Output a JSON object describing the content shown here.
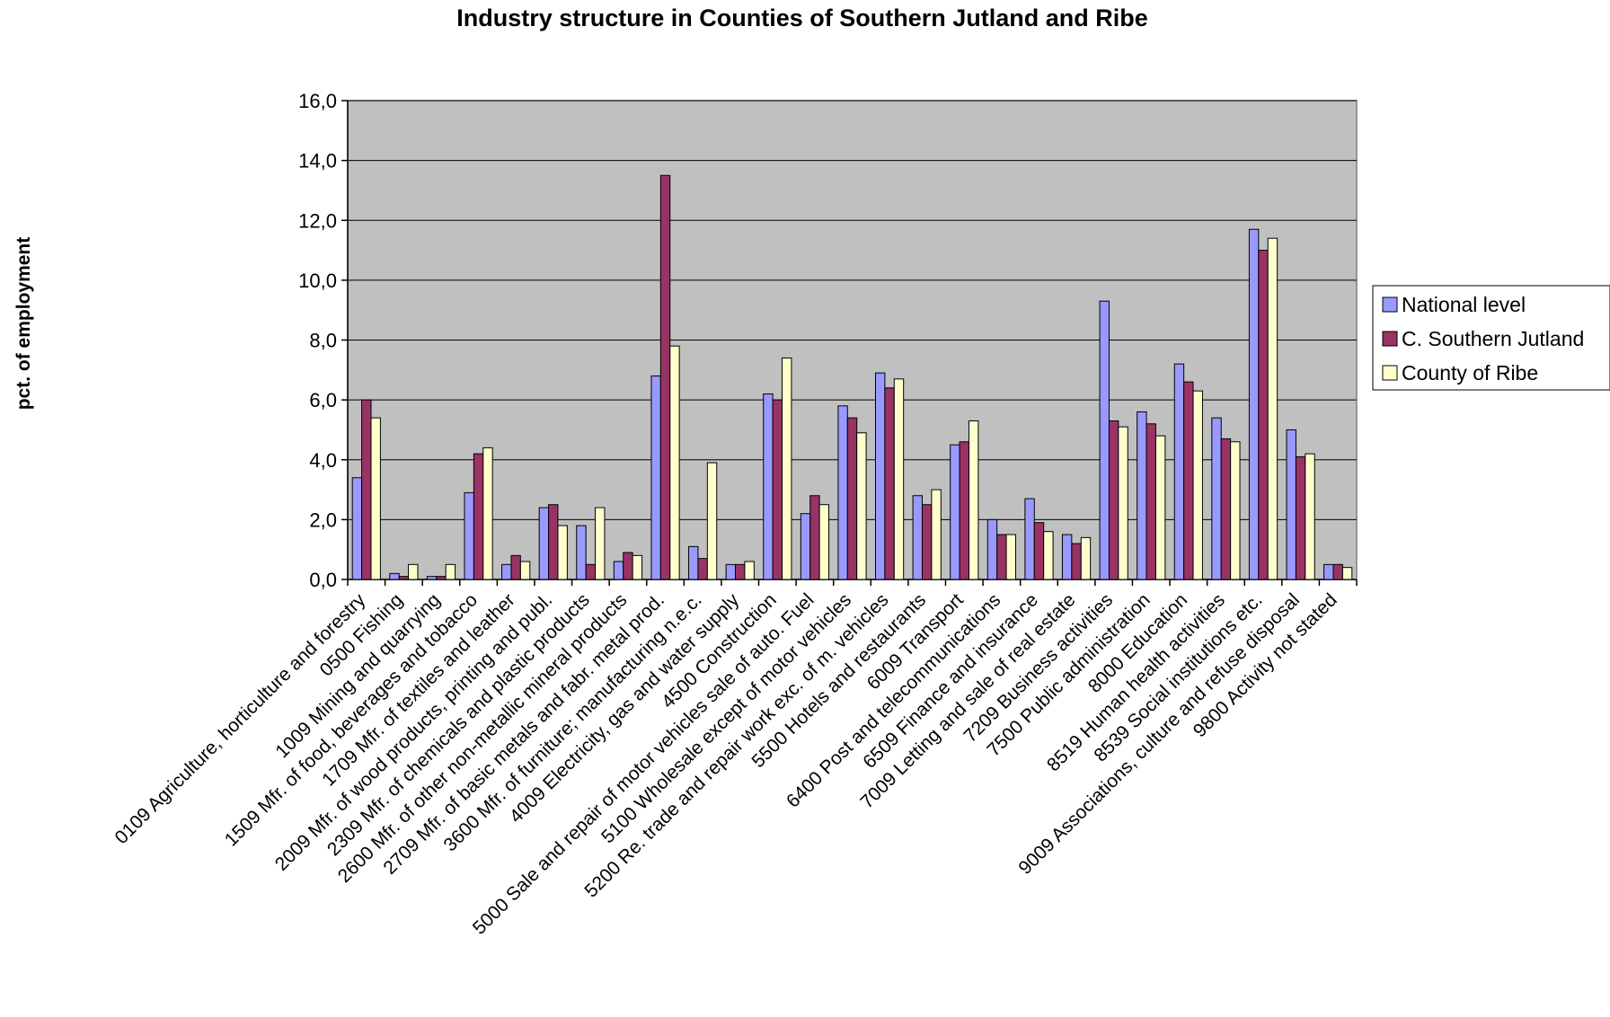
{
  "chart_data": {
    "type": "bar",
    "title": "Industry structure in Counties of Southern Jutland and Ribe",
    "xlabel": "",
    "ylabel": "pct. of employment",
    "ylim": [
      0,
      16
    ],
    "yticks": [
      "0,0",
      "2,0",
      "4,0",
      "6,0",
      "8,0",
      "10,0",
      "12,0",
      "14,0",
      "16,0"
    ],
    "grid": true,
    "legend_position": "right",
    "categories": [
      "0109 Agriculture, horticulture and forestry",
      "0500 Fishing",
      "1009 Mining and quarrying",
      "1509 Mfr. of food, beverages and tobacco",
      "1709 Mfr. of textiles and leather",
      "2009 Mfr. of wood products, printing and publ.",
      "2309 Mfr. of chemicals and plastic products",
      "2600 Mfr. of other non-metallic mineral products",
      "2709 Mfr. of basic metals and fabr. metal prod.",
      "3600 Mfr. of furniture; manufacturing n.e.c.",
      "4009 Electricity, gas and water supply",
      "4500 Construction",
      "5000 Sale and repair of motor vehicles sale of auto. Fuel",
      "5100 Wholesale except of motor vehicles",
      "5200 Re. trade and repair work exc. of m. vehicles",
      "5500 Hotels and restaurants",
      "6009 Transport",
      "6400 Post and telecommunications",
      "6509 Finance and insurance",
      "7009 Letting and sale of real estate",
      "7209 Business activities",
      "7500 Public administration",
      "8000 Education",
      "8519 Human health activities",
      "8539 Social institutions etc.",
      "9009 Associations, culture and refuse disposal",
      "9800 Activity not stated"
    ],
    "series": [
      {
        "name": "National level",
        "color": "#9999ff",
        "values": [
          3.4,
          0.2,
          0.1,
          2.9,
          0.5,
          2.4,
          1.8,
          0.6,
          6.8,
          1.1,
          0.5,
          6.2,
          2.2,
          5.8,
          6.9,
          2.8,
          4.5,
          2.0,
          2.7,
          1.5,
          9.3,
          5.6,
          7.2,
          5.4,
          11.7,
          5.0,
          0.5
        ]
      },
      {
        "name": "C. Southern Jutland",
        "color": "#993366",
        "values": [
          6.0,
          0.1,
          0.1,
          4.2,
          0.8,
          2.5,
          0.5,
          0.9,
          13.5,
          0.7,
          0.5,
          6.0,
          2.8,
          5.4,
          6.4,
          2.5,
          4.6,
          1.5,
          1.9,
          1.2,
          5.3,
          5.2,
          6.6,
          4.7,
          11.0,
          4.1,
          0.5
        ]
      },
      {
        "name": "County of Ribe",
        "color": "#ffffcc",
        "values": [
          5.4,
          0.5,
          0.5,
          4.4,
          0.6,
          1.8,
          2.4,
          0.8,
          7.8,
          3.9,
          0.6,
          7.4,
          2.5,
          4.9,
          6.7,
          3.0,
          5.3,
          1.5,
          1.6,
          1.4,
          5.1,
          4.8,
          6.3,
          4.6,
          11.4,
          4.2,
          0.4
        ]
      }
    ]
  }
}
